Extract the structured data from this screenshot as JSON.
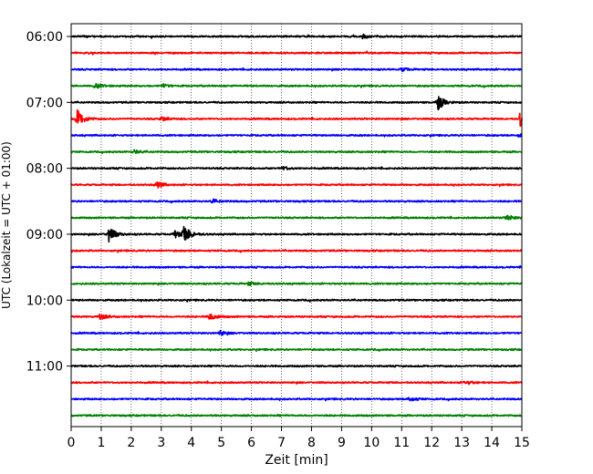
{
  "chart_data": {
    "type": "line",
    "subtype": "seismogram-dayplot",
    "xlabel": "Zeit  [min]",
    "ylabel": "UTC (Lokalzeit = UTC + 01:00)",
    "xlim": [
      0,
      15
    ],
    "x_ticks": [
      0,
      1,
      2,
      3,
      4,
      5,
      6,
      7,
      8,
      9,
      10,
      11,
      12,
      13,
      14,
      15
    ],
    "x_tick_labels": [
      "0",
      "1",
      "2",
      "3",
      "4",
      "5",
      "6",
      "7",
      "8",
      "9",
      "10",
      "11",
      "12",
      "13",
      "14",
      "15"
    ],
    "y_tick_labels": [
      "06:00",
      "07:00",
      "08:00",
      "09:00",
      "10:00",
      "11:00"
    ],
    "y_tick_rows": [
      0,
      4,
      8,
      12,
      16,
      20
    ],
    "trace_start_times": [
      "06:00",
      "06:15",
      "06:30",
      "06:45",
      "07:00",
      "07:15",
      "07:30",
      "07:45",
      "08:00",
      "08:15",
      "08:30",
      "08:45",
      "09:00",
      "09:15",
      "09:30",
      "09:45",
      "10:00",
      "10:15",
      "10:30",
      "10:45",
      "11:00",
      "11:15",
      "11:30",
      "11:45"
    ],
    "trace_colors": [
      "#000000",
      "#ff0000",
      "#0000ff",
      "#008000"
    ],
    "grid": "vertical dotted at each minute",
    "events": [
      {
        "row": 0,
        "t": 9.7,
        "amp": 0.35
      },
      {
        "row": 2,
        "t": 11.0,
        "amp": 0.3
      },
      {
        "row": 3,
        "t": 0.8,
        "amp": 0.45
      },
      {
        "row": 3,
        "t": 3.05,
        "amp": 0.3
      },
      {
        "row": 4,
        "t": 12.2,
        "amp": 1.3
      },
      {
        "row": 5,
        "t": 0.2,
        "amp": 1.6
      },
      {
        "row": 5,
        "t": 3.0,
        "amp": 0.35
      },
      {
        "row": 5,
        "t": 14.95,
        "amp": 1.6
      },
      {
        "row": 6,
        "t": 14.9,
        "amp": 0.35
      },
      {
        "row": 7,
        "t": 2.1,
        "amp": 0.3
      },
      {
        "row": 8,
        "t": 7.05,
        "amp": 0.3
      },
      {
        "row": 9,
        "t": 2.85,
        "amp": 0.6
      },
      {
        "row": 10,
        "t": 4.7,
        "amp": 0.35
      },
      {
        "row": 11,
        "t": 14.5,
        "amp": 0.5
      },
      {
        "row": 12,
        "t": 1.25,
        "amp": 1.3
      },
      {
        "row": 12,
        "t": 3.75,
        "amp": 1.5
      },
      {
        "row": 12,
        "t": 3.45,
        "amp": 0.7
      },
      {
        "row": 15,
        "t": 5.9,
        "amp": 0.3
      },
      {
        "row": 17,
        "t": 0.95,
        "amp": 0.5
      },
      {
        "row": 17,
        "t": 4.6,
        "amp": 0.65
      },
      {
        "row": 18,
        "t": 4.95,
        "amp": 0.4
      },
      {
        "row": 21,
        "t": 13.1,
        "amp": 0.4
      },
      {
        "row": 22,
        "t": 11.25,
        "amp": 0.45
      }
    ]
  }
}
